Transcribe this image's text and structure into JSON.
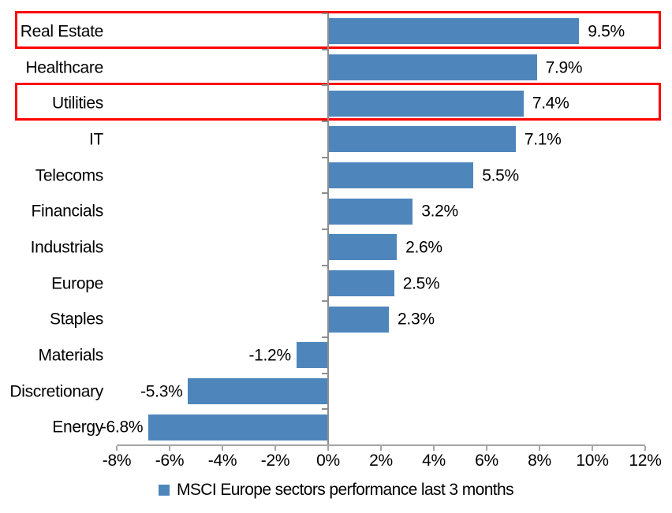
{
  "chart_data": {
    "type": "bar",
    "orientation": "horizontal",
    "title": "",
    "legend": "MSCI Europe sectors performance last 3 months",
    "legend_position": "bottom",
    "grid": false,
    "xlim": [
      -8,
      12
    ],
    "categories": [
      "Real Estate",
      "Healthcare",
      "Utilities",
      "IT",
      "Telecoms",
      "Financials",
      "Industrials",
      "Europe",
      "Staples",
      "Materials",
      "Discretionary",
      "Energy"
    ],
    "values": [
      9.5,
      7.9,
      7.4,
      7.1,
      5.5,
      3.2,
      2.6,
      2.5,
      2.3,
      -1.2,
      -5.3,
      -6.8
    ],
    "value_labels": [
      "9.5%",
      "7.9%",
      "7.4%",
      "7.1%",
      "5.5%",
      "3.2%",
      "2.6%",
      "2.5%",
      "2.3%",
      "-1.2%",
      "-5.3%",
      "-6.8%"
    ],
    "highlighted": [
      "Real Estate",
      "Utilities"
    ],
    "x_ticks": [
      {
        "value": -8,
        "label": "-8%"
      },
      {
        "value": -6,
        "label": "-6%"
      },
      {
        "value": -4,
        "label": "-4%"
      },
      {
        "value": -2,
        "label": "-2%"
      },
      {
        "value": 0,
        "label": "0%"
      },
      {
        "value": 2,
        "label": "2%"
      },
      {
        "value": 4,
        "label": "4%"
      },
      {
        "value": 6,
        "label": "6%"
      },
      {
        "value": 8,
        "label": "8%"
      },
      {
        "value": 10,
        "label": "10%"
      },
      {
        "value": 12,
        "label": "12%"
      }
    ],
    "colors": {
      "bar": "#4e86bc",
      "highlight_border": "#fe0000",
      "y_axis": "#8e8e8e",
      "x_axis": "#a6a6a6",
      "text": "#000000"
    }
  }
}
